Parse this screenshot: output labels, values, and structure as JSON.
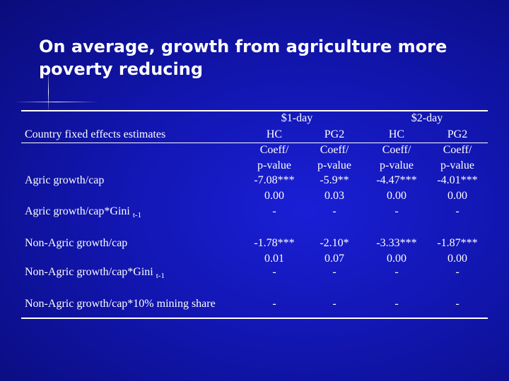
{
  "slide": {
    "title": "On average, growth from agriculture more poverty reducing"
  },
  "table": {
    "group_headers": [
      "$1-day",
      "$2-day"
    ],
    "row_header": "Country fixed effects estimates",
    "col_headers": [
      "HC",
      "PG2",
      "HC",
      "PG2"
    ],
    "subheaders": {
      "line1": "Coeff/",
      "line2": "p-value"
    },
    "rows": {
      "agric": {
        "label": "Agric growth/cap"
      },
      "agric_gini": {
        "label": "Agric growth/cap*Gini",
        "sub": "t-1"
      },
      "nonagric": {
        "label": "Non-Agric growth/cap"
      },
      "nonagric_gini": {
        "label": "Non-Agric growth/cap*Gini",
        "sub": "t-1"
      },
      "mining": {
        "label": "Non-Agric growth/cap*10% mining share"
      }
    },
    "cells": {
      "agric": {
        "coeff": [
          "-7.08***",
          "-5.9**",
          "-4.47***",
          "-4.01***"
        ],
        "pval": [
          "0.00",
          "0.03",
          "0.00",
          "0.00"
        ],
        "gini": [
          "-",
          "-",
          "-",
          "-"
        ]
      },
      "nonagric": {
        "coeff": [
          "-1.78***",
          "-2.10*",
          "-3.33***",
          "-1.87***"
        ],
        "pval": [
          "0.01",
          "0.07",
          "0.00",
          "0.00"
        ],
        "gini": [
          "-",
          "-",
          "-",
          "-"
        ]
      },
      "mining": [
        "-",
        "-",
        "-",
        "-"
      ]
    }
  }
}
